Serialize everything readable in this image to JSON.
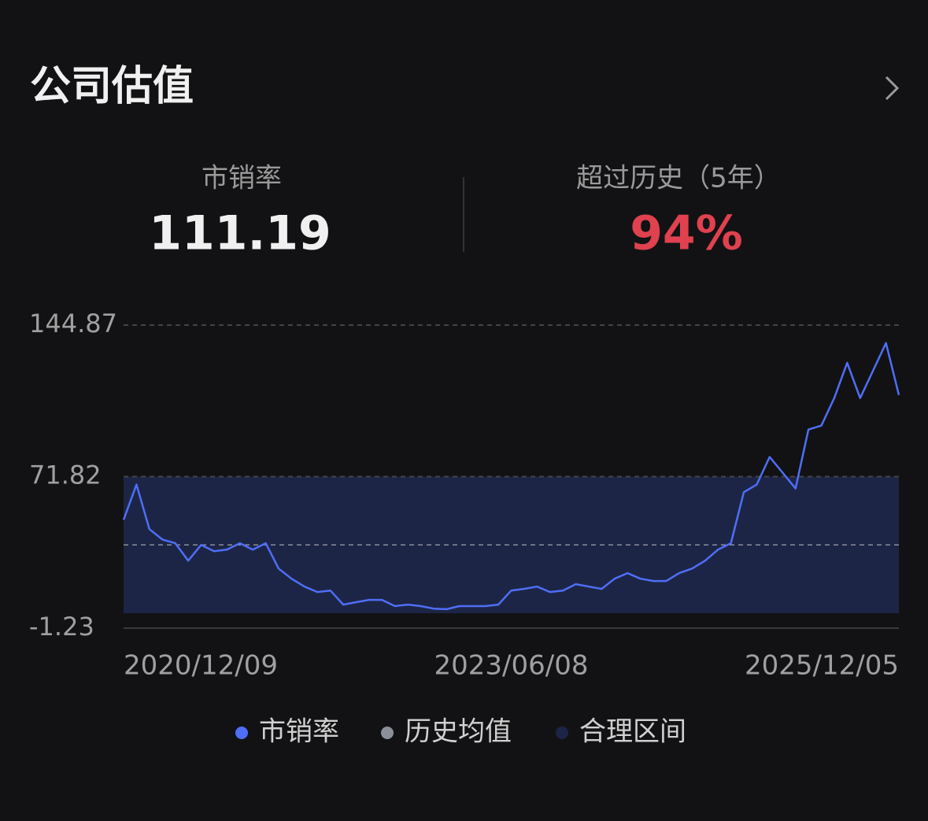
{
  "header": {
    "title": "公司估值"
  },
  "metrics": [
    {
      "label": "市销率",
      "value": "111.19"
    },
    {
      "label": "超过历史（5年）",
      "value": "94%"
    }
  ],
  "chart_data": {
    "type": "line",
    "categories": [
      "2020/12/09",
      null,
      null,
      null,
      null,
      null,
      null,
      null,
      null,
      null,
      null,
      null,
      null,
      null,
      null,
      null,
      null,
      null,
      null,
      null,
      null,
      null,
      null,
      null,
      null,
      null,
      null,
      null,
      null,
      null,
      "2023/06/08",
      null,
      null,
      null,
      null,
      null,
      null,
      null,
      null,
      null,
      null,
      null,
      null,
      null,
      null,
      null,
      null,
      null,
      null,
      null,
      null,
      null,
      null,
      null,
      null,
      null,
      null,
      null,
      null,
      null,
      "2025/12/05"
    ],
    "series": [
      {
        "name": "市销率",
        "color": "#4f6ef7",
        "values": [
          51.0,
          68.0,
          46.5,
          41.5,
          39.7,
          31.3,
          38.9,
          35.9,
          36.6,
          39.7,
          36.6,
          39.7,
          27.5,
          22.6,
          18.8,
          16.2,
          16.9,
          10.1,
          11.3,
          12.4,
          12.4,
          9.4,
          10.1,
          9.4,
          8.2,
          7.9,
          9.4,
          9.4,
          9.4,
          10.1,
          16.9,
          17.7,
          18.8,
          16.2,
          16.9,
          20.0,
          18.8,
          17.7,
          22.6,
          25.3,
          22.6,
          21.5,
          21.5,
          25.3,
          27.5,
          31.3,
          36.6,
          39.7,
          64.3,
          68.0,
          81.3,
          73.7,
          66.1,
          94.5,
          96.4,
          109.7,
          126.7,
          109.7,
          122.9,
          136.2,
          111.19
        ]
      }
    ],
    "mean": {
      "name": "历史均值",
      "value": 38.89,
      "color": "#8a8f9a"
    },
    "band": {
      "name": "合理区间",
      "range": [
        5.96,
        71.82
      ],
      "color": "#1d2546"
    },
    "ylim": [
      -1.23,
      144.87
    ],
    "yticks": [
      -1.23,
      71.82,
      144.87
    ]
  }
}
